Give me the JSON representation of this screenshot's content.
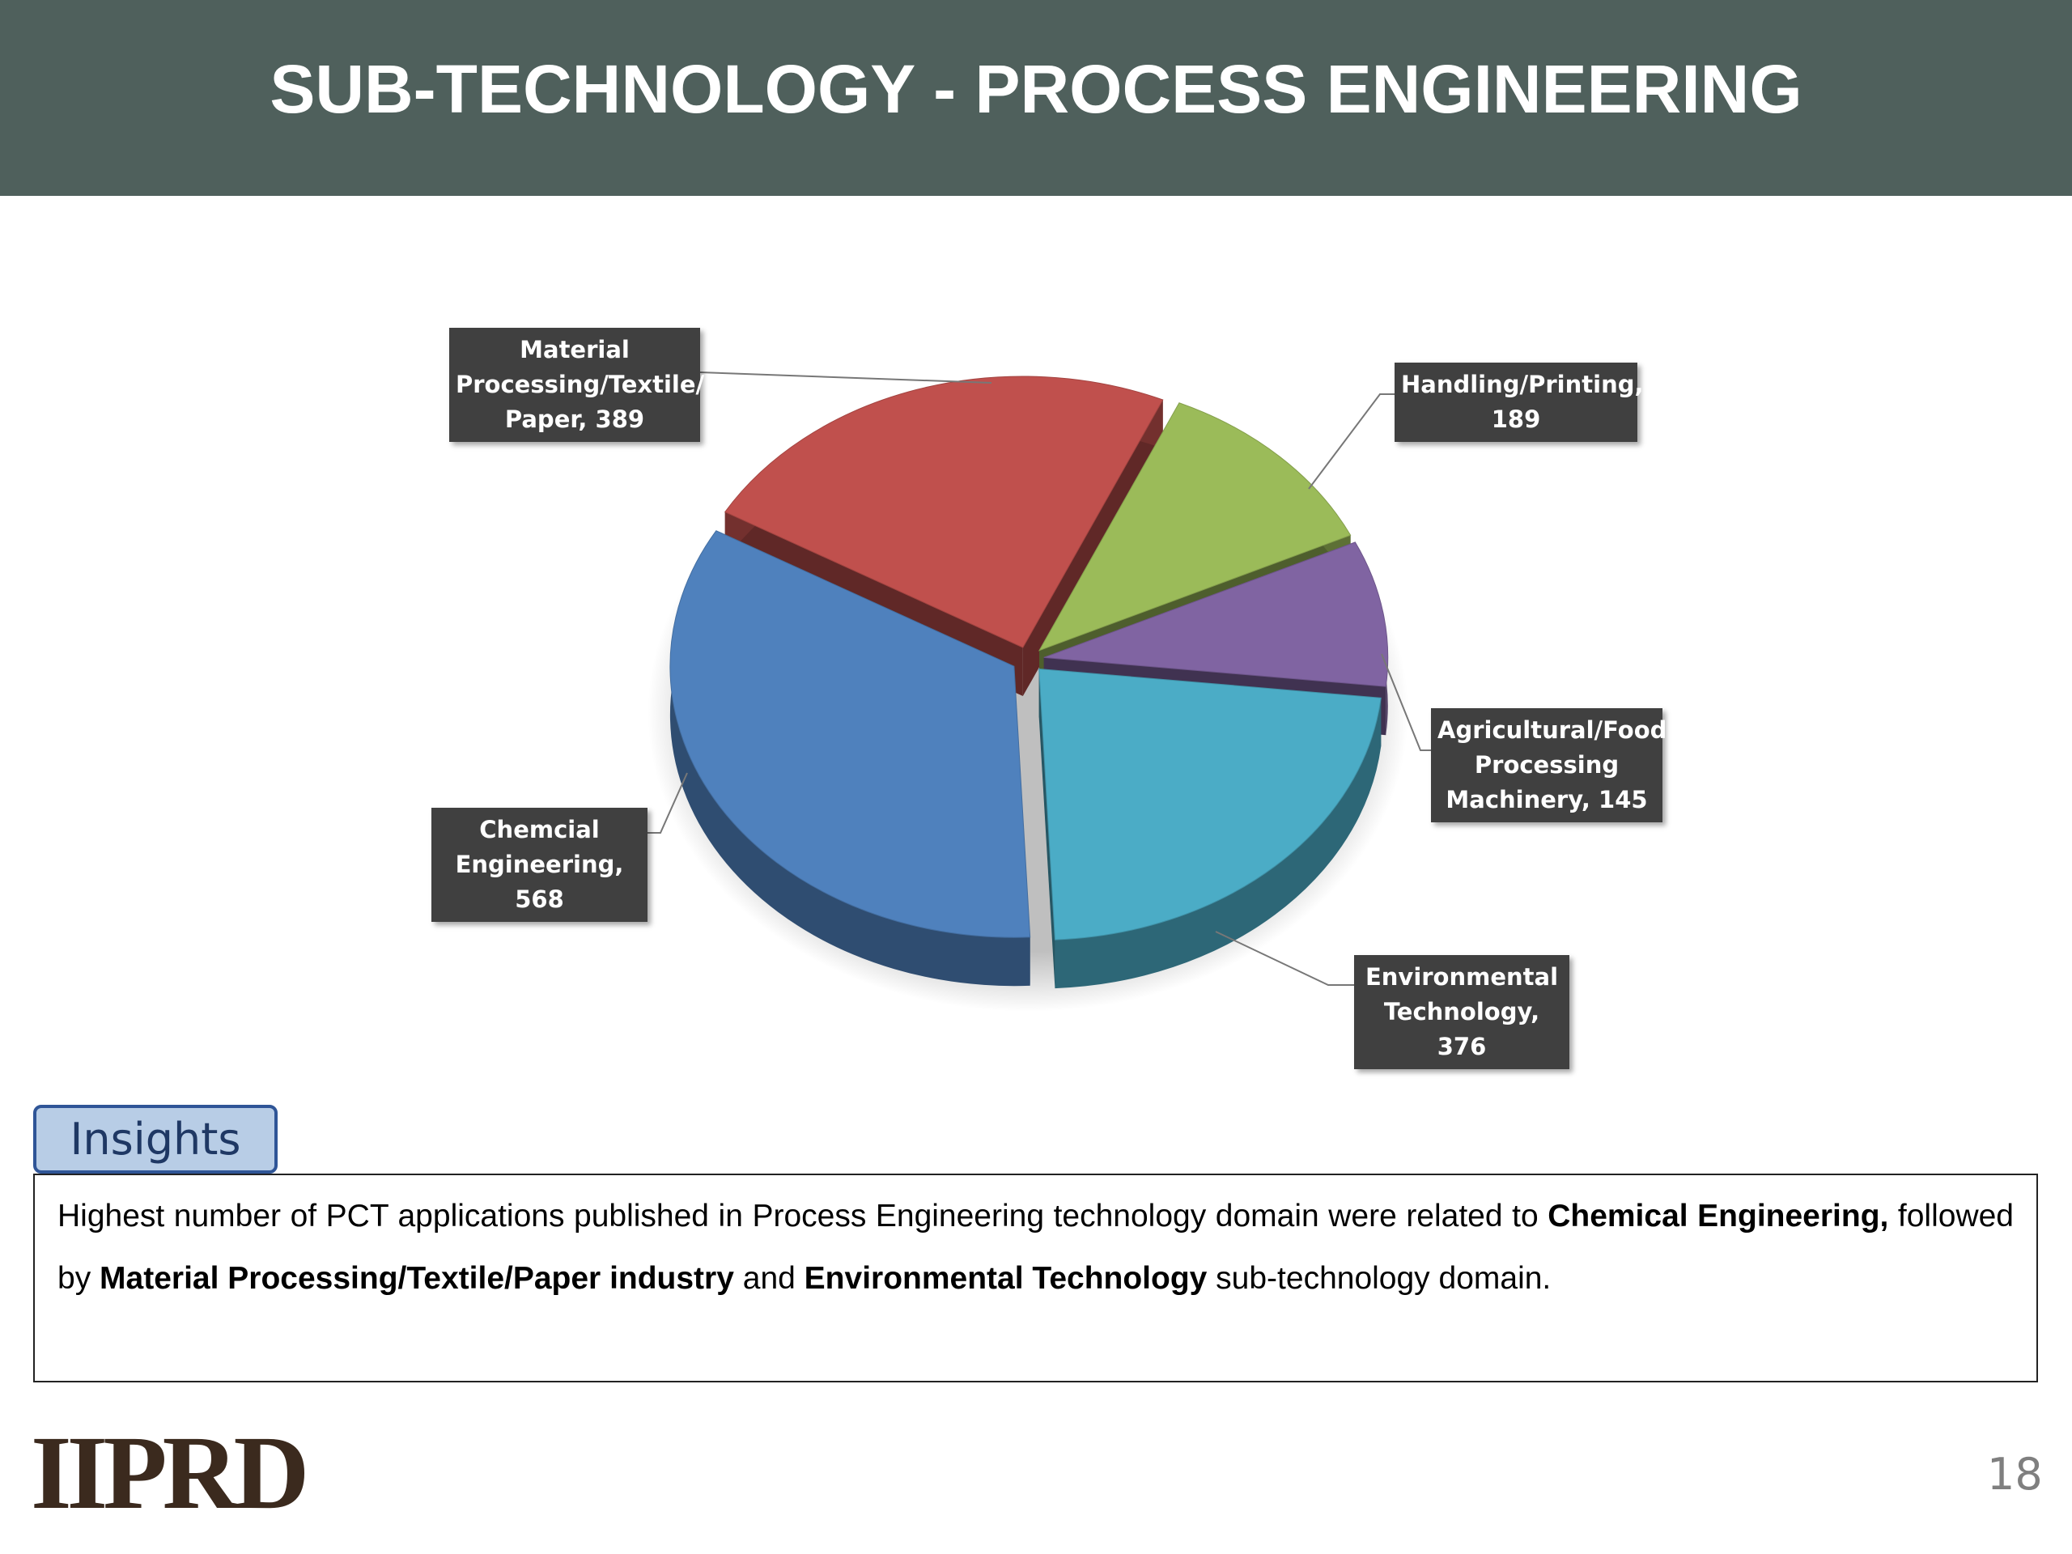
{
  "header": {
    "title": "SUB-TECHNOLOGY - PROCESS ENGINEERING"
  },
  "chart_data": {
    "type": "pie",
    "categories": [
      "Material Processing/Textile/ Paper",
      "Handling/Printing,",
      "Agricultural/Food Processing Machinery",
      "Environmental Technology",
      "Chemcial Engineering"
    ],
    "values": [
      389,
      189,
      145,
      376,
      568
    ],
    "colors": [
      "#c0504d",
      "#9bbb59",
      "#8064a2",
      "#4bacc6",
      "#4f81bd"
    ],
    "label_separator": ","
  },
  "insights": {
    "label": "Insights",
    "text": [
      {
        "text": "Highest number of PCT applications published in Process Engineering technology domain were related to ",
        "bold": false
      },
      {
        "text": "Chemical Engineering,",
        "bold": true
      },
      {
        "text": " followed by ",
        "bold": false
      },
      {
        "text": "Material Processing/Textile/Paper industry",
        "bold": true
      },
      {
        "text": " and ",
        "bold": false
      },
      {
        "text": "Environmental Technology",
        "bold": true
      },
      {
        "text": " sub-technology domain.",
        "bold": false
      }
    ]
  },
  "footer": {
    "logo": "IIPRD",
    "page": "18"
  }
}
